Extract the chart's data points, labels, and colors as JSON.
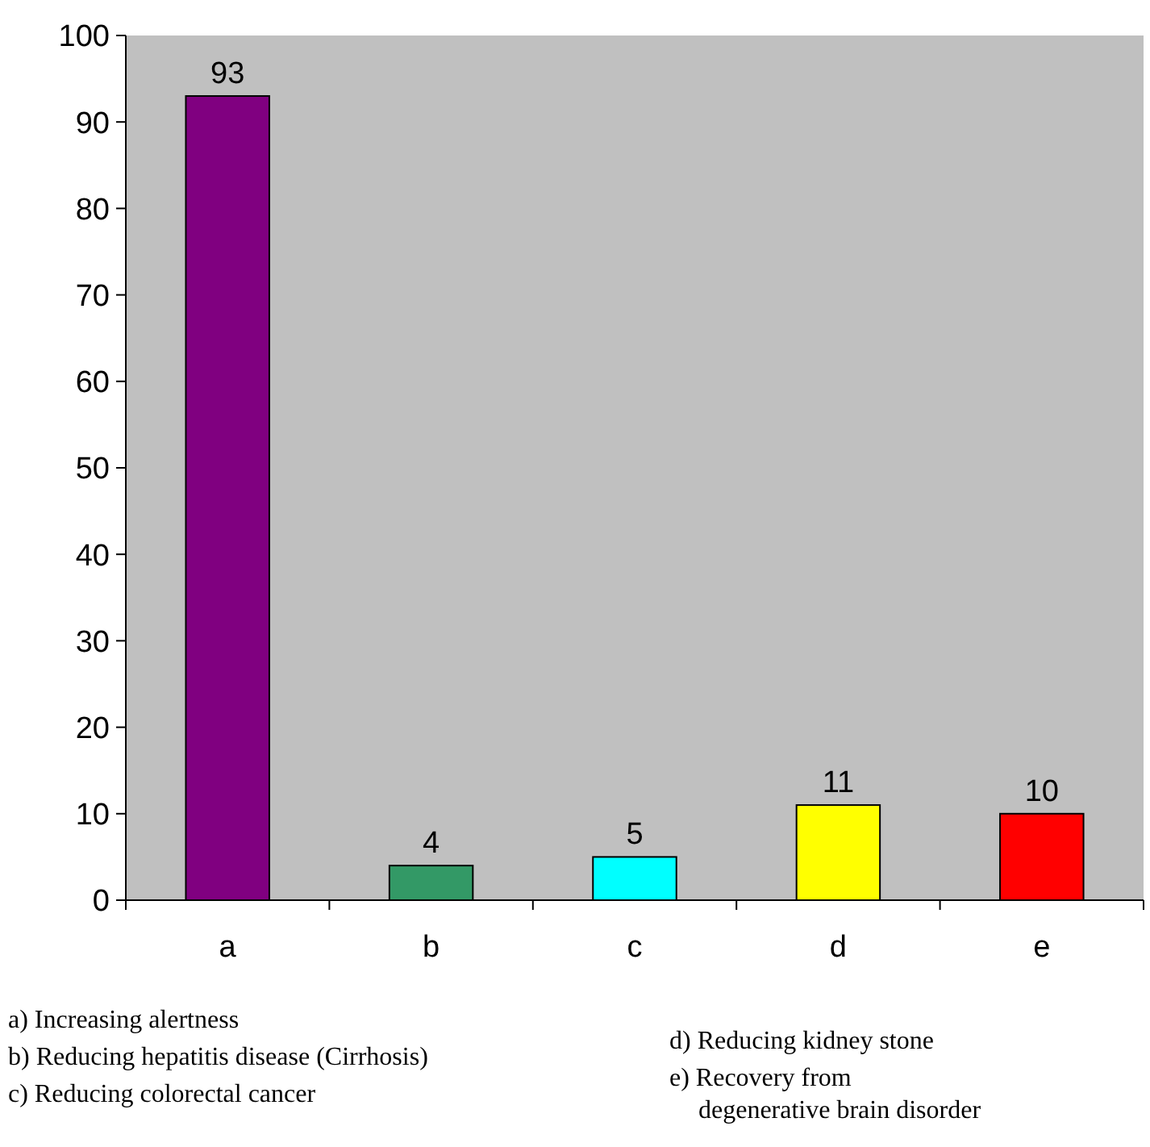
{
  "chart_data": {
    "type": "bar",
    "categories": [
      "a",
      "b",
      "c",
      "d",
      "e"
    ],
    "values": [
      93,
      4,
      5,
      11,
      10
    ],
    "colors": [
      "#800080",
      "#339966",
      "#00ffff",
      "#ffff00",
      "#ff0000"
    ],
    "ylim": [
      0,
      100
    ],
    "yticks": [
      0,
      10,
      20,
      30,
      40,
      50,
      60,
      70,
      80,
      90,
      100
    ],
    "data_labels": true,
    "annotations": [
      "a) Increasing alertness",
      "b) Reducing hepatitis disease (Cirrhosis)",
      "c) Reducing colorectal cancer",
      "d) Reducing kidney stone",
      "e) Recovery from\ndegenerative brain disorder"
    ]
  }
}
